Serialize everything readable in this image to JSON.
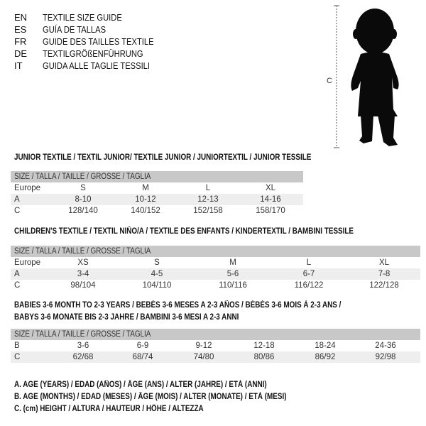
{
  "languages": [
    {
      "code": "EN",
      "title": "TEXTILE SIZE GUIDE"
    },
    {
      "code": "ES",
      "title": "GUÍA DE TALLAS"
    },
    {
      "code": "FR",
      "title": "GUIDE DES TAILLES TEXTILE"
    },
    {
      "code": "DE",
      "title": "TEXTILGRÖßENFÜHRUNG"
    },
    {
      "code": "IT",
      "title": "GUIDA ALLE TAGLIE TESSILI"
    }
  ],
  "figure": {
    "measure_label": "C"
  },
  "size_header": "SIZE / TALLA / TAILLE / GRÖSSE / TAGLIA",
  "junior": {
    "title": "JUNIOR TEXTILE / TEXTIL JUNIOR/ TEXTILE JUNIOR / JUNIORTEXTIL / JUNIOR TESSILE",
    "rows": [
      {
        "label": "Europe",
        "values": [
          "S",
          "M",
          "L",
          "XL"
        ]
      },
      {
        "label": "A",
        "values": [
          "8-10",
          "10-12",
          "12-13",
          "14-16"
        ]
      },
      {
        "label": "C",
        "values": [
          "128/140",
          "140/152",
          "152/158",
          "158/170"
        ]
      }
    ]
  },
  "children": {
    "title": "CHILDREN'S TEXTILE / TEXTIL NIÑO/A / TEXTILE DES ENFANTS / KINDERTEXTIL / BAMBINI TESSILE",
    "rows": [
      {
        "label": "Europe",
        "values": [
          "XS",
          "S",
          "M",
          "L",
          "XL"
        ]
      },
      {
        "label": "A",
        "values": [
          "3-4",
          "4-5",
          "5-6",
          "6-7",
          "7-8"
        ]
      },
      {
        "label": "C",
        "values": [
          "98/104",
          "104/110",
          "110/116",
          "116/122",
          "122/128"
        ]
      }
    ]
  },
  "babies": {
    "title_line1": "BABIES 3-6 MONTH TO 2-3 YEARS / BEBÉS 3-6 MESES A 2-3 AÑOS / BÉBÉS 3-6 MOIS À 2-3 ANS /",
    "title_line2": "BABYS 3-6 MONATE BIS 2-3 JAHRE / BAMBINI 3-6 MESI A 2-3 ANNI",
    "rows": [
      {
        "label": "B",
        "values": [
          "3-6",
          "6-9",
          "9-12",
          "12-18",
          "18-24",
          "24-36"
        ]
      },
      {
        "label": "C",
        "values": [
          "62/68",
          "68/74",
          "74/80",
          "80/86",
          "86/92",
          "92/98"
        ]
      }
    ]
  },
  "legend": [
    "A. AGE (YEARS) / EDAD (AÑOS) / ÂGE (ANS) / ALTER (JAHRE) / ETÀ (ANNI)",
    "B. AGE (MONTHS) / EDAD (MESES) / ÂGE (MOIS) / ALTER (MONATE) / ETÀ (MESI)",
    "C. (cm) HEIGHT / ALTURA / HAUTEUR / HÖHE / ALTEZZA"
  ]
}
